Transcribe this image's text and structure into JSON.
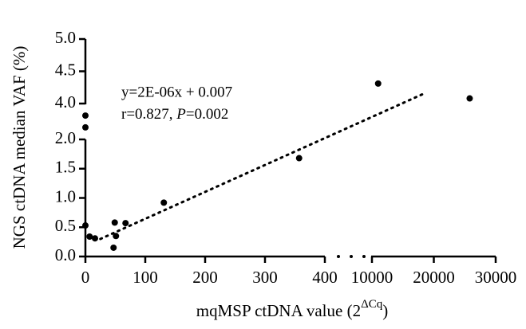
{
  "chart_data": {
    "type": "scatter",
    "y_label": "NGS ctDNA median VAF (%)",
    "x_label": {
      "main": "mqMSP ctDNA value (2",
      "sup": "ΔCq",
      "end": ")"
    },
    "annotation": {
      "equation": "y=2E-06x + 0.007",
      "r_text": "r=0.827, ",
      "p_symbol": "P",
      "p_text": "=0.002"
    },
    "x_segments": [
      [
        0,
        400
      ],
      [
        10000,
        30000
      ]
    ],
    "y_segments": [
      [
        0,
        2
      ],
      [
        4,
        5
      ]
    ],
    "xlim": [
      0,
      30000
    ],
    "ylim": [
      0,
      5
    ],
    "xticks": [
      0,
      100,
      200,
      300,
      400,
      10000,
      20000,
      30000
    ],
    "yticks": [
      {
        "value": 0,
        "label": "0.0"
      },
      0.5,
      {
        "value": 1,
        "label": "1.0"
      },
      1.5,
      {
        "value": 2,
        "label": "2.0"
      },
      {
        "value": 4,
        "label": "4.0"
      },
      4.5,
      {
        "value": 5,
        "label": "5.0"
      }
    ],
    "color": "#000000",
    "x": [
      0,
      0,
      0,
      7,
      16,
      47,
      49,
      51,
      67,
      131,
      357,
      11000,
      25800
    ],
    "values": [
      3.33,
      2.67,
      0.53,
      0.34,
      0.31,
      0.15,
      0.58,
      0.35,
      0.57,
      0.92,
      1.68,
      4.31,
      4.08
    ],
    "trend_line": {
      "x": [
        25,
        18300
      ],
      "y": [
        0.3,
        4.15
      ]
    }
  }
}
